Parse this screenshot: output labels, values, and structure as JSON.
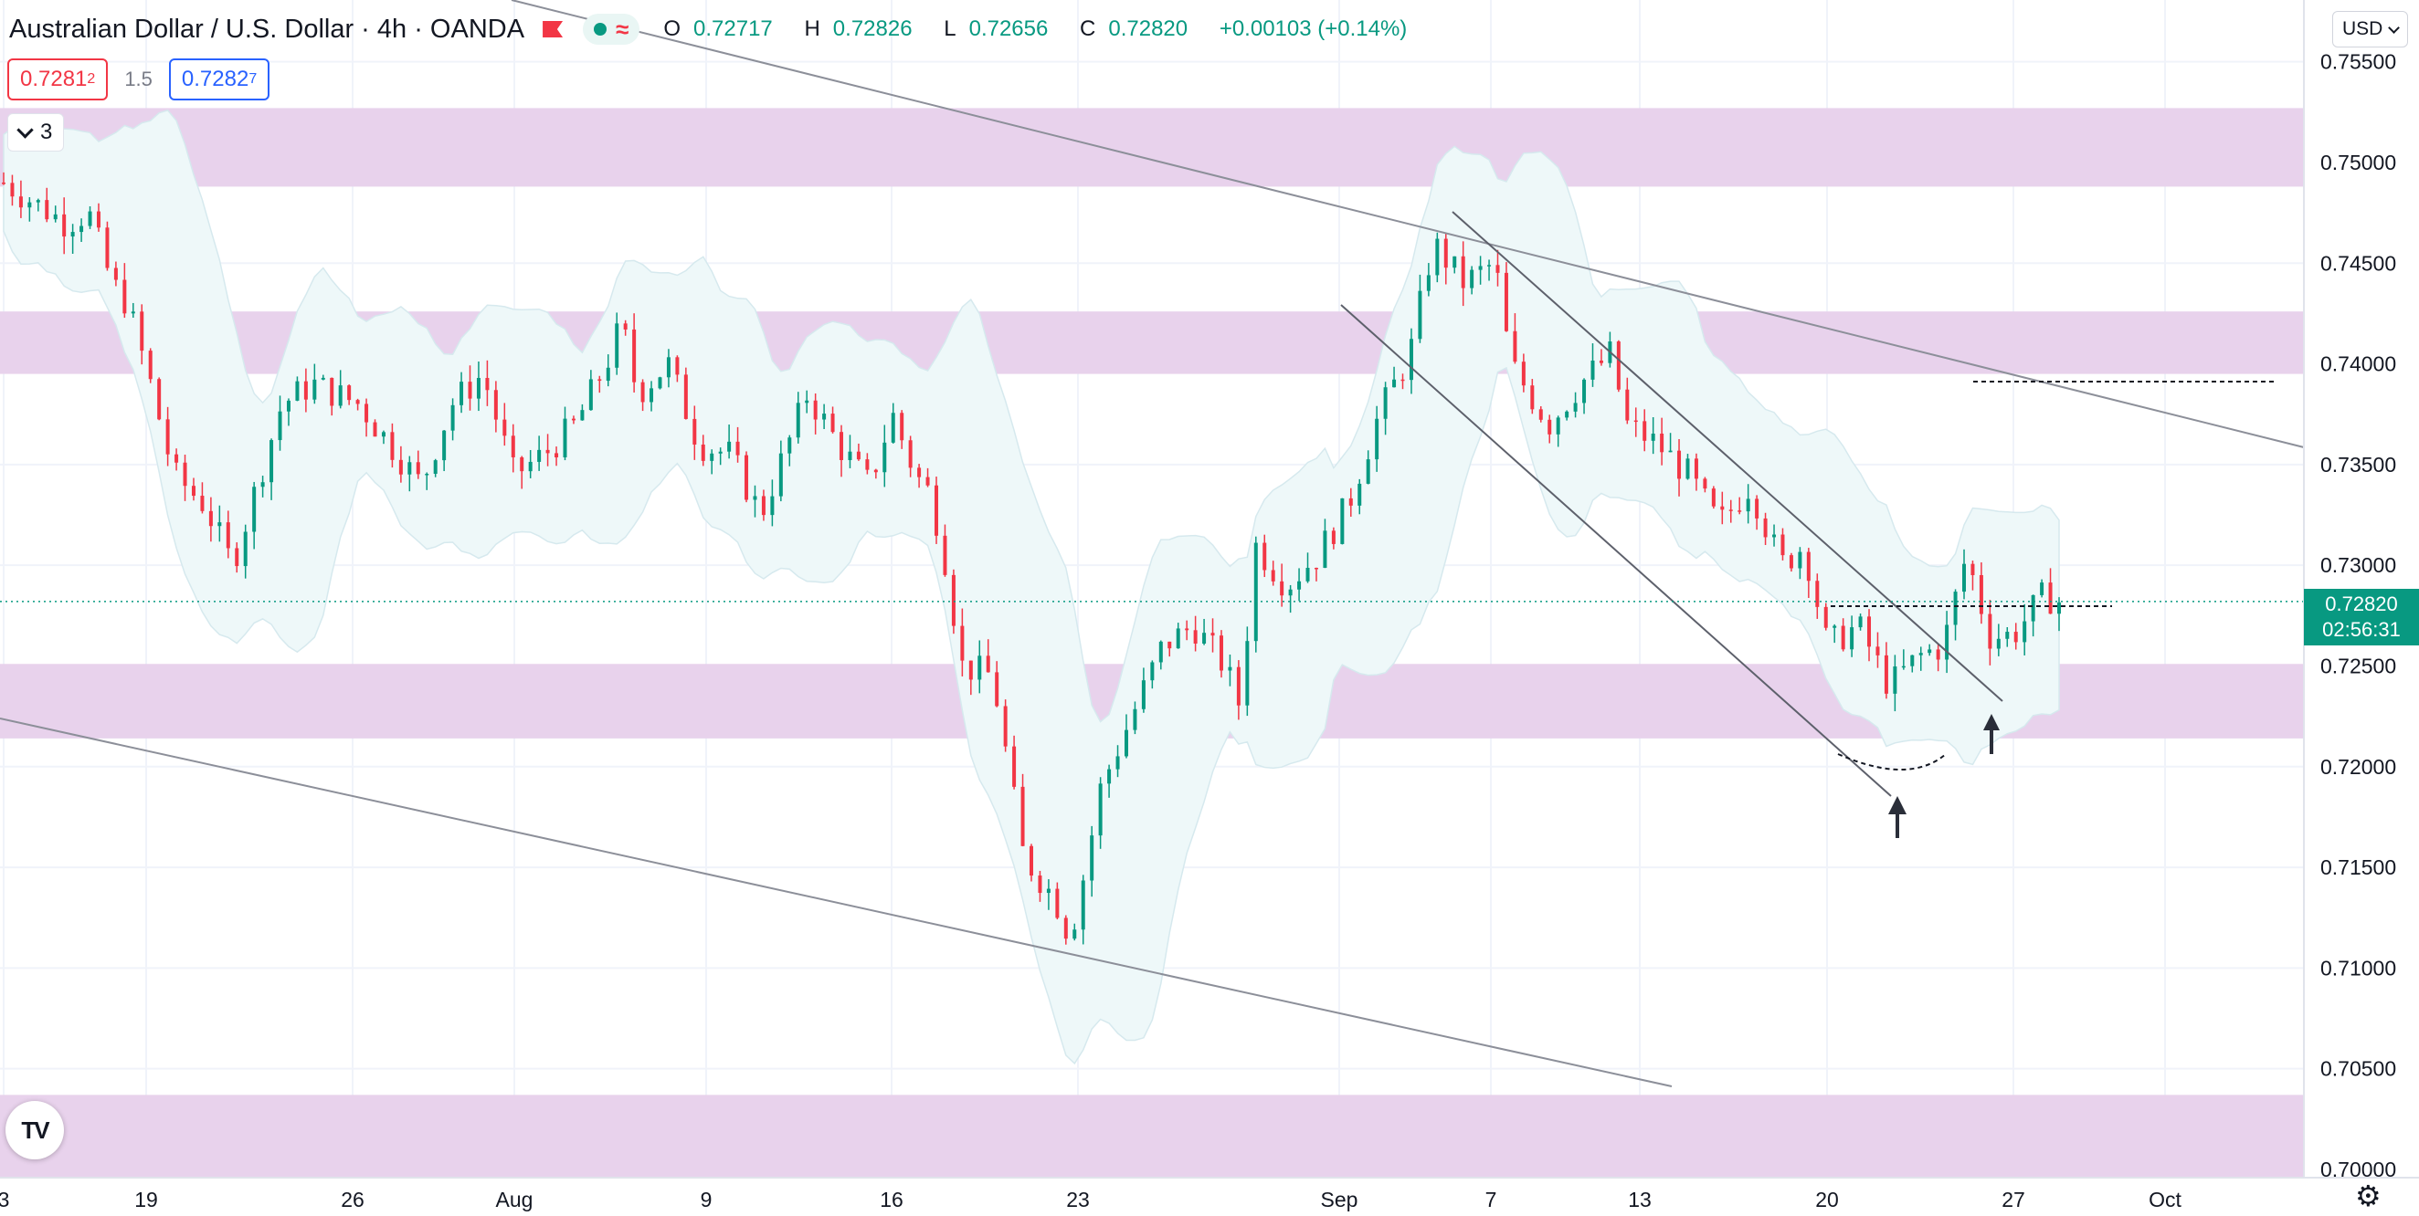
{
  "header": {
    "symbol": "Australian Dollar / U.S. Dollar · 4h · OANDA",
    "ohlc": {
      "open_key": "O",
      "open": "0.72717",
      "high_key": "H",
      "high": "0.72826",
      "low_key": "L",
      "low": "0.72656",
      "close_key": "C",
      "close": "0.72820",
      "change": "+0.00103 (+0.14%)"
    }
  },
  "trade": {
    "sell_main": "0.7281",
    "sell_sup": "2",
    "spread": "1.5",
    "buy_main": "0.7282",
    "buy_sup": "7"
  },
  "indicators_toggle": {
    "count": "3"
  },
  "currency_selector": "USD",
  "last_price": {
    "price": "0.72820",
    "countdown": "02:56:31"
  },
  "logo_text": "TV",
  "colors": {
    "up": "#089981",
    "down": "#f23645",
    "zone": "#e8d2ec",
    "band": "#eef8f9",
    "last_price_line": "#089981"
  },
  "icons": [
    "chevron-down-icon",
    "flag-icon",
    "indicator-eye-icon",
    "wave-icon",
    "settings-gear-icon",
    "tradingview-logo-icon",
    "up-arrow-icon"
  ],
  "chart_data": {
    "type": "candlestick",
    "y_ticks": [
      "0.75500",
      "0.75000",
      "0.74500",
      "0.74000",
      "0.73500",
      "0.73000",
      "0.72500",
      "0.72000",
      "0.71500",
      "0.71000",
      "0.70500",
      "0.70000"
    ],
    "ylim": [
      0.6995,
      0.7558
    ],
    "x_ticks": [
      "3",
      "19",
      "26",
      "Aug",
      "9",
      "16",
      "23",
      "Sep",
      "7",
      "13",
      "20",
      "27",
      "Oct"
    ],
    "resistance_support_zones": [
      [
        0.7488,
        0.7527
      ],
      [
        0.7395,
        0.7426
      ],
      [
        0.7214,
        0.7251
      ],
      [
        0.6993,
        0.7037
      ]
    ],
    "reference_lines": {
      "dashed_0740": 0.7399,
      "dashed_0728": 0.7284,
      "last_price": 0.7282
    },
    "series_path": [
      [
        0,
        0.749
      ],
      [
        40,
        0.747
      ],
      [
        55,
        0.7475
      ],
      [
        70,
        0.744
      ],
      [
        80,
        0.743
      ],
      [
        95,
        0.739
      ],
      [
        110,
        0.7345
      ],
      [
        130,
        0.733
      ],
      [
        148,
        0.73
      ],
      [
        160,
        0.733
      ],
      [
        180,
        0.738
      ],
      [
        200,
        0.739
      ],
      [
        230,
        0.738
      ],
      [
        250,
        0.736
      ],
      [
        270,
        0.734
      ],
      [
        290,
        0.738
      ],
      [
        310,
        0.7395
      ],
      [
        330,
        0.7345
      ],
      [
        350,
        0.7355
      ],
      [
        370,
        0.737
      ],
      [
        390,
        0.74
      ],
      [
        400,
        0.742
      ],
      [
        410,
        0.7385
      ],
      [
        430,
        0.74
      ],
      [
        450,
        0.736
      ],
      [
        470,
        0.7355
      ],
      [
        490,
        0.7325
      ],
      [
        520,
        0.7385
      ],
      [
        540,
        0.736
      ],
      [
        560,
        0.734
      ],
      [
        575,
        0.7375
      ],
      [
        590,
        0.7345
      ],
      [
        600,
        0.7335
      ],
      [
        610,
        0.73
      ],
      [
        620,
        0.725
      ],
      [
        640,
        0.7245
      ],
      [
        660,
        0.7155
      ],
      [
        680,
        0.7135
      ],
      [
        690,
        0.7115
      ],
      [
        700,
        0.715
      ],
      [
        710,
        0.719
      ],
      [
        730,
        0.7225
      ],
      [
        750,
        0.726
      ],
      [
        770,
        0.727
      ],
      [
        790,
        0.725
      ],
      [
        800,
        0.723
      ],
      [
        810,
        0.731
      ],
      [
        830,
        0.729
      ],
      [
        850,
        0.7305
      ],
      [
        870,
        0.733
      ],
      [
        890,
        0.7375
      ],
      [
        910,
        0.7405
      ],
      [
        925,
        0.746
      ],
      [
        945,
        0.744
      ],
      [
        965,
        0.745
      ],
      [
        975,
        0.74
      ],
      [
        1000,
        0.737
      ],
      [
        1020,
        0.739
      ],
      [
        1040,
        0.7405
      ],
      [
        1050,
        0.737
      ],
      [
        1070,
        0.736
      ],
      [
        1090,
        0.7345
      ],
      [
        1110,
        0.732
      ],
      [
        1130,
        0.734
      ],
      [
        1150,
        0.73
      ],
      [
        1165,
        0.731
      ],
      [
        1180,
        0.726
      ],
      [
        1200,
        0.727
      ],
      [
        1220,
        0.724
      ],
      [
        1240,
        0.7255
      ],
      [
        1255,
        0.726
      ],
      [
        1270,
        0.7305
      ],
      [
        1285,
        0.7265
      ],
      [
        1300,
        0.7265
      ],
      [
        1320,
        0.7285
      ],
      [
        1330,
        0.7282
      ]
    ]
  }
}
